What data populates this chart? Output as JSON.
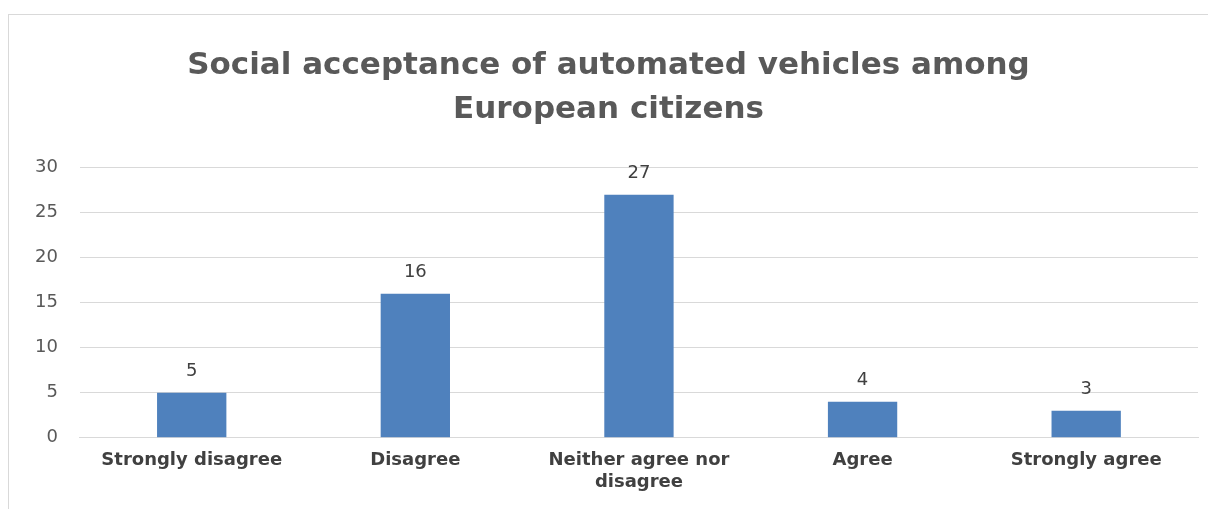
{
  "chart_data": {
    "type": "bar",
    "title": "Social acceptance of automated vehicles among European citizens",
    "categories": [
      "Strongly disagree",
      "Disagree",
      "Neither agree nor disagree",
      "Agree",
      "Strongly agree"
    ],
    "values": [
      5,
      16,
      27,
      4,
      3
    ],
    "color": "#4f81bd",
    "ylim": [
      0,
      30
    ],
    "yticks": [
      0,
      5,
      10,
      15,
      20,
      25,
      30
    ],
    "grid": "y",
    "data_labels": true,
    "legend": false
  }
}
